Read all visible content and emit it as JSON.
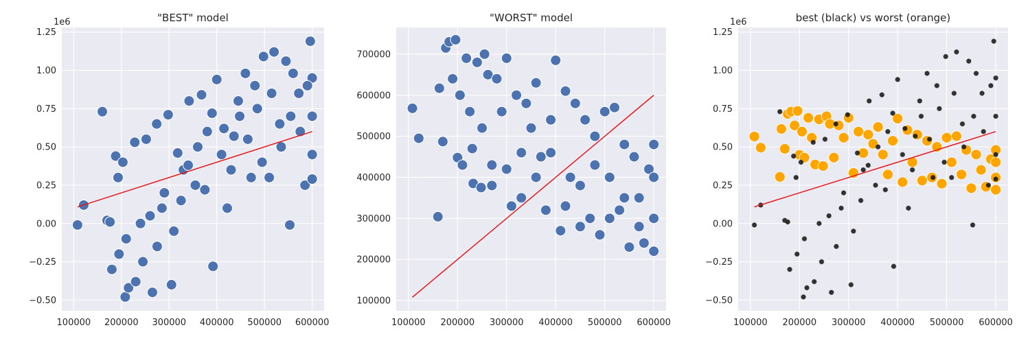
{
  "chart_data": [
    {
      "type": "scatter",
      "title": "\"BEST\" model",
      "xlabel": "",
      "ylabel": "",
      "xlim": [
        75000,
        625000
      ],
      "ylim": [
        -0.57,
        1.28
      ],
      "y_offset_label": "1e6",
      "x_ticks": [
        100000,
        200000,
        300000,
        400000,
        500000,
        600000
      ],
      "x_tick_labels": [
        "100000",
        "200000",
        "300000",
        "400000",
        "500000",
        "600000"
      ],
      "y_ticks": [
        -0.5,
        -0.25,
        0.0,
        0.25,
        0.5,
        0.75,
        1.0,
        1.25
      ],
      "y_tick_labels": [
        "−0.50",
        "−0.25",
        "0.00",
        "0.25",
        "0.50",
        "0.75",
        "1.00",
        "1.25"
      ],
      "grid": true,
      "colors": {
        "points": "#4c72b0",
        "edge": "#ffffff",
        "line": "#e31a1c",
        "background": "#eaeaf2"
      },
      "series": [
        {
          "marker_size": "large",
          "x": [
            108000,
            121000,
            160000,
            170000,
            176000,
            188000,
            193000,
            203000,
            208000,
            215000,
            228000,
            240000,
            252000,
            265000,
            274000,
            285000,
            298000,
            305000,
            318000,
            330000,
            342000,
            355000,
            368000,
            380000,
            392000,
            400000,
            410000,
            422000,
            436000,
            448000,
            460000,
            472000,
            485000,
            498000,
            510000,
            520000,
            532000,
            545000,
            553000,
            560000,
            572000,
            585000,
            596000,
            600000,
            600000,
            600000,
            600000,
            180000,
            195000,
            210000,
            230000,
            245000,
            260000,
            275000,
            290000,
            310000,
            325000,
            340000,
            360000,
            375000,
            390000,
            415000,
            430000,
            445000,
            465000,
            480000,
            495000,
            515000,
            535000,
            555000,
            575000,
            590000
          ],
          "y": [
            -0.01,
            0.12,
            0.73,
            0.02,
            0.01,
            0.44,
            0.3,
            0.4,
            -0.48,
            -0.42,
            0.53,
            0.0,
            0.55,
            -0.45,
            0.65,
            0.1,
            0.71,
            -0.4,
            0.46,
            0.35,
            0.8,
            0.25,
            0.84,
            0.6,
            -0.28,
            0.94,
            0.45,
            0.1,
            0.57,
            0.7,
            0.98,
            0.3,
            0.75,
            1.09,
            0.3,
            1.12,
            0.65,
            1.06,
            -0.01,
            0.98,
            0.85,
            0.25,
            1.19,
            0.29,
            0.45,
            0.7,
            0.95,
            -0.3,
            -0.2,
            -0.1,
            -0.38,
            -0.25,
            0.05,
            -0.15,
            0.2,
            -0.05,
            0.15,
            0.38,
            0.5,
            0.22,
            0.72,
            0.62,
            0.35,
            0.8,
            0.55,
            0.9,
            0.4,
            0.85,
            0.5,
            0.7,
            0.6,
            0.9
          ]
        }
      ],
      "reference_line": {
        "x": [
          108000,
          600000
        ],
        "y": [
          0.108,
          0.6
        ]
      }
    },
    {
      "type": "scatter",
      "title": "\"WORST\" model",
      "xlabel": "",
      "ylabel": "",
      "xlim": [
        75000,
        625000
      ],
      "ylim": [
        75000,
        765000
      ],
      "y_offset_label": "",
      "x_ticks": [
        100000,
        200000,
        300000,
        400000,
        500000,
        600000
      ],
      "x_tick_labels": [
        "100000",
        "200000",
        "300000",
        "400000",
        "500000",
        "600000"
      ],
      "y_ticks": [
        100000,
        200000,
        300000,
        400000,
        500000,
        600000,
        700000
      ],
      "y_tick_labels": [
        "100000",
        "200000",
        "300000",
        "400000",
        "500000",
        "600000",
        "700000"
      ],
      "grid": true,
      "colors": {
        "points": "#4c72b0",
        "edge": "#ffffff",
        "line": "#e31a1c",
        "background": "#eaeaf2"
      },
      "series": [
        {
          "marker_size": "large",
          "x": [
            108000,
            121000,
            160000,
            163000,
            170000,
            176000,
            183000,
            190000,
            196000,
            200000,
            205000,
            210000,
            218000,
            225000,
            232000,
            240000,
            248000,
            255000,
            262000,
            270000,
            280000,
            290000,
            300000,
            310000,
            320000,
            330000,
            340000,
            350000,
            360000,
            370000,
            380000,
            390000,
            400000,
            410000,
            420000,
            430000,
            440000,
            450000,
            460000,
            470000,
            480000,
            490000,
            500000,
            510000,
            520000,
            530000,
            540000,
            550000,
            560000,
            570000,
            580000,
            590000,
            600000,
            600000,
            600000,
            600000,
            230000,
            250000,
            270000,
            300000,
            330000,
            360000,
            390000,
            420000,
            450000,
            480000,
            510000,
            540000,
            570000
          ],
          "y": [
            568000,
            495000,
            304000,
            617000,
            487000,
            715000,
            730000,
            640000,
            735000,
            448000,
            600000,
            430000,
            690000,
            560000,
            385000,
            680000,
            375000,
            700000,
            650000,
            430000,
            640000,
            560000,
            690000,
            330000,
            600000,
            460000,
            580000,
            520000,
            630000,
            450000,
            320000,
            540000,
            685000,
            270000,
            610000,
            400000,
            580000,
            280000,
            540000,
            300000,
            500000,
            260000,
            560000,
            400000,
            570000,
            320000,
            480000,
            230000,
            450000,
            350000,
            240000,
            420000,
            480000,
            220000,
            300000,
            400000,
            470000,
            520000,
            380000,
            420000,
            350000,
            400000,
            460000,
            330000,
            380000,
            430000,
            300000,
            350000,
            280000
          ]
        }
      ],
      "reference_line": {
        "x": [
          108000,
          600000
        ],
        "y": [
          108000,
          600000
        ]
      }
    },
    {
      "type": "scatter",
      "title": "best (black) vs worst (orange)",
      "xlabel": "",
      "ylabel": "",
      "xlim": [
        75000,
        625000
      ],
      "ylim": [
        -0.57,
        1.28
      ],
      "y_offset_label": "1e6",
      "x_ticks": [
        100000,
        200000,
        300000,
        400000,
        500000,
        600000
      ],
      "x_tick_labels": [
        "100000",
        "200000",
        "300000",
        "400000",
        "500000",
        "600000"
      ],
      "y_ticks": [
        -0.5,
        -0.25,
        0.0,
        0.25,
        0.5,
        0.75,
        1.0,
        1.25
      ],
      "y_tick_labels": [
        "−0.50",
        "−0.25",
        "0.00",
        "0.25",
        "0.50",
        "0.75",
        "1.00",
        "1.25"
      ],
      "grid": true,
      "colors": {
        "best": "#111111",
        "worst": "#ffa500",
        "line": "#e31a1c",
        "background": "#eaeaf2"
      },
      "series": [
        {
          "marker_size": "large",
          "color_role": "worst",
          "x": [
            108000,
            121000,
            160000,
            163000,
            170000,
            176000,
            183000,
            190000,
            196000,
            200000,
            205000,
            210000,
            218000,
            225000,
            232000,
            240000,
            248000,
            255000,
            262000,
            270000,
            280000,
            290000,
            300000,
            310000,
            320000,
            330000,
            340000,
            350000,
            360000,
            370000,
            380000,
            390000,
            400000,
            410000,
            420000,
            430000,
            440000,
            450000,
            460000,
            470000,
            480000,
            490000,
            500000,
            510000,
            520000,
            530000,
            540000,
            550000,
            560000,
            570000,
            580000,
            590000,
            600000,
            600000,
            600000,
            600000
          ],
          "y": [
            0.568,
            0.495,
            0.304,
            0.617,
            0.487,
            0.715,
            0.73,
            0.64,
            0.735,
            0.448,
            0.6,
            0.43,
            0.69,
            0.56,
            0.385,
            0.68,
            0.375,
            0.7,
            0.65,
            0.43,
            0.64,
            0.56,
            0.69,
            0.33,
            0.6,
            0.46,
            0.58,
            0.52,
            0.63,
            0.45,
            0.32,
            0.54,
            0.685,
            0.27,
            0.61,
            0.4,
            0.58,
            0.28,
            0.54,
            0.3,
            0.5,
            0.26,
            0.56,
            0.4,
            0.57,
            0.32,
            0.48,
            0.23,
            0.45,
            0.35,
            0.24,
            0.42,
            0.48,
            0.22,
            0.3,
            0.4
          ]
        },
        {
          "marker_size": "small",
          "color_role": "best",
          "x": [
            108000,
            121000,
            160000,
            170000,
            176000,
            188000,
            193000,
            203000,
            208000,
            215000,
            228000,
            240000,
            252000,
            265000,
            274000,
            285000,
            298000,
            305000,
            318000,
            330000,
            342000,
            355000,
            368000,
            380000,
            392000,
            400000,
            410000,
            422000,
            436000,
            448000,
            460000,
            472000,
            485000,
            498000,
            510000,
            520000,
            532000,
            545000,
            553000,
            560000,
            572000,
            585000,
            596000,
            600000,
            600000,
            600000,
            600000,
            180000,
            195000,
            210000,
            230000,
            245000,
            260000,
            275000,
            290000,
            310000,
            325000,
            340000,
            360000,
            375000,
            390000,
            415000,
            430000,
            445000,
            465000,
            480000,
            495000,
            515000,
            535000,
            555000,
            575000,
            590000
          ],
          "y": [
            -0.01,
            0.12,
            0.73,
            0.02,
            0.01,
            0.44,
            0.3,
            0.4,
            -0.48,
            -0.42,
            0.53,
            0.0,
            0.55,
            -0.45,
            0.65,
            0.1,
            0.71,
            -0.4,
            0.46,
            0.35,
            0.8,
            0.25,
            0.84,
            0.6,
            -0.28,
            0.94,
            0.45,
            0.1,
            0.57,
            0.7,
            0.98,
            0.3,
            0.75,
            1.09,
            0.3,
            1.12,
            0.65,
            1.06,
            -0.01,
            0.98,
            0.85,
            0.25,
            1.19,
            0.29,
            0.45,
            0.7,
            0.95,
            -0.3,
            -0.2,
            -0.1,
            -0.38,
            -0.25,
            0.05,
            -0.15,
            0.2,
            -0.05,
            0.15,
            0.38,
            0.5,
            0.22,
            0.72,
            0.62,
            0.35,
            0.8,
            0.55,
            0.9,
            0.4,
            0.85,
            0.5,
            0.7,
            0.6,
            0.9
          ]
        }
      ],
      "reference_line": {
        "x": [
          108000,
          600000
        ],
        "y": [
          0.108,
          0.6
        ]
      }
    }
  ]
}
